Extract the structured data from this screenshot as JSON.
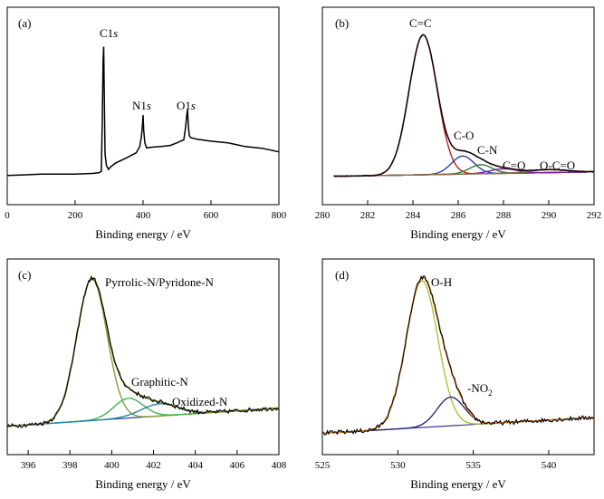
{
  "chart_data": [
    {
      "panel": "(a)",
      "type": "line",
      "xlabel": "Binding energy / eV",
      "xlim": [
        0,
        800
      ],
      "xticks": [
        0,
        200,
        400,
        600,
        800
      ],
      "ylim": [
        0,
        1
      ],
      "grid": false,
      "series": [
        {
          "color": "#000000",
          "x": [
            0,
            50,
            100,
            150,
            200,
            250,
            270,
            277,
            280,
            282,
            284,
            286,
            288,
            292,
            298,
            305,
            320,
            350,
            380,
            390,
            395,
            398,
            400,
            402,
            405,
            410,
            430,
            450,
            480,
            500,
            520,
            525,
            528,
            531,
            533,
            536,
            540,
            560,
            600,
            650,
            700,
            750,
            800
          ],
          "y": [
            0.04,
            0.045,
            0.05,
            0.05,
            0.05,
            0.055,
            0.06,
            0.07,
            0.45,
            0.86,
            0.96,
            0.55,
            0.2,
            0.12,
            0.09,
            0.1,
            0.13,
            0.16,
            0.2,
            0.25,
            0.32,
            0.4,
            0.47,
            0.36,
            0.28,
            0.24,
            0.25,
            0.25,
            0.26,
            0.27,
            0.3,
            0.38,
            0.46,
            0.51,
            0.4,
            0.33,
            0.31,
            0.3,
            0.29,
            0.27,
            0.25,
            0.23,
            0.21
          ]
        }
      ],
      "annotations": [
        {
          "text": "C1s",
          "x": 282
        },
        {
          "text": "N1s",
          "x": 400
        },
        {
          "text": "O1s",
          "x": 531
        }
      ]
    },
    {
      "panel": "(b)",
      "type": "line",
      "xlabel": "Binding energy / eV",
      "xlim": [
        280,
        292
      ],
      "xticks": [
        280,
        282,
        284,
        286,
        288,
        290,
        292
      ],
      "ylim": [
        0,
        1
      ],
      "grid": false,
      "baseline": {
        "x": [
          280.5,
          292
        ],
        "y": [
          0.02,
          0.05
        ]
      },
      "peaks": [
        {
          "label": "C=C",
          "center": 284.45,
          "height": 0.93,
          "width": 0.62,
          "color": "#b22222"
        },
        {
          "label": "C-O",
          "center": 286.2,
          "height": 0.12,
          "width": 0.5,
          "color": "#2b3ea0"
        },
        {
          "label": "C-N",
          "center": 287.0,
          "height": 0.06,
          "width": 0.5,
          "color": "#2e7d32"
        },
        {
          "label": "C=O",
          "center": 288.0,
          "height": 0.03,
          "width": 0.6,
          "color": "#7b1fa2"
        },
        {
          "label": "O-C=O",
          "center": 290.0,
          "height": 0.02,
          "width": 0.8,
          "color": "#8e6e3c"
        }
      ],
      "envelope_color": "#6b2a2a",
      "data_color": "#000000"
    },
    {
      "panel": "(c)",
      "type": "line",
      "xlabel": "Binding energy / eV",
      "xlim": [
        395,
        408
      ],
      "xticks": [
        396,
        398,
        400,
        402,
        404,
        406,
        408
      ],
      "ylim": [
        0,
        1
      ],
      "grid": false,
      "baseline": {
        "x": [
          395,
          408
        ],
        "y": [
          0.02,
          0.14
        ]
      },
      "peaks": [
        {
          "label": "Pyrrolic-N/Pyridone-N",
          "center": 399.05,
          "height": 0.93,
          "width": 0.72,
          "color": "#8a9a3c"
        },
        {
          "label": "Graphitic-N",
          "center": 400.8,
          "height": 0.13,
          "width": 0.7,
          "color": "#3cb44b"
        },
        {
          "label": "Oxidized-N",
          "center": 402.3,
          "height": 0.08,
          "width": 0.9,
          "color": "#1e88a8"
        }
      ],
      "envelope_color": "#7a8a2a",
      "data_color": "#000000"
    },
    {
      "panel": "(d)",
      "type": "line",
      "xlabel": "Binding energy / eV",
      "xlim": [
        525,
        543
      ],
      "xticks": [
        525,
        530,
        535,
        540
      ],
      "ylim": [
        0,
        1
      ],
      "grid": false,
      "baseline": {
        "x": [
          525,
          543
        ],
        "y": [
          0.02,
          0.12
        ]
      },
      "peaks": [
        {
          "label": "O-H",
          "center": 531.6,
          "height": 0.92,
          "width": 1.05,
          "color": "#a8c43c"
        },
        {
          "label": "-NO2",
          "center": 533.5,
          "height": 0.18,
          "width": 0.9,
          "color": "#2b2b7a"
        }
      ],
      "envelope_color": "#e08a2a",
      "data_color": "#000000"
    }
  ]
}
